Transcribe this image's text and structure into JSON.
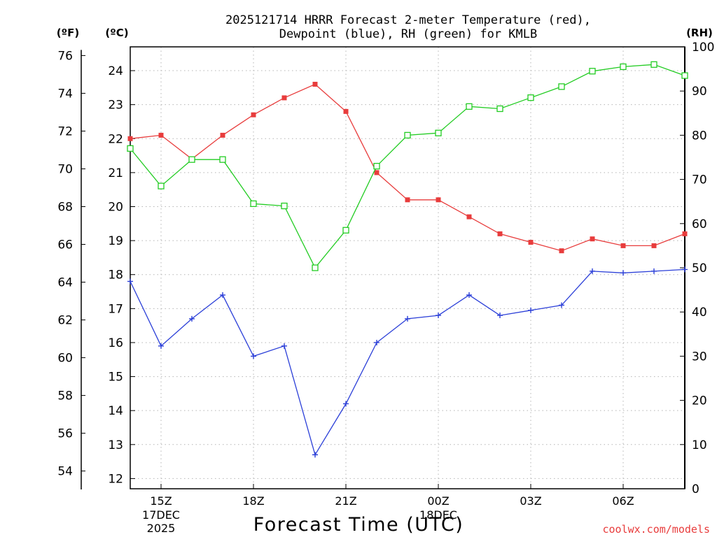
{
  "chart_data": {
    "type": "line",
    "title_line1": "2025121714 HRRR Forecast 2-meter Temperature (red),",
    "title_line2": "Dewpoint (blue), RH (green) for KMLB",
    "axis_units": {
      "fahrenheit": "(ºF)",
      "celsius": "(ºC)",
      "rh": "(RH)"
    },
    "xlabel": "Forecast Time (UTC)",
    "credit": "coolwx.com/models",
    "x_ticks": [
      {
        "hour": 1,
        "label": "15Z",
        "sub1": "17DEC",
        "sub2": "2025"
      },
      {
        "hour": 4,
        "label": "18Z",
        "sub1": "",
        "sub2": ""
      },
      {
        "hour": 7,
        "label": "21Z",
        "sub1": "",
        "sub2": ""
      },
      {
        "hour": 10,
        "label": "00Z",
        "sub1": "18DEC",
        "sub2": ""
      },
      {
        "hour": 13,
        "label": "03Z",
        "sub1": "",
        "sub2": ""
      },
      {
        "hour": 16,
        "label": "06Z",
        "sub1": "",
        "sub2": ""
      }
    ],
    "x_range": [
      0,
      18
    ],
    "celsius_range": [
      11.7,
      24.7
    ],
    "celsius_ticks": [
      12,
      13,
      14,
      15,
      16,
      17,
      18,
      19,
      20,
      21,
      22,
      23,
      24
    ],
    "fahrenheit_ticks": [
      54,
      56,
      58,
      60,
      62,
      64,
      66,
      68,
      70,
      72,
      74,
      76
    ],
    "rh_range": [
      0,
      100
    ],
    "rh_ticks": [
      0,
      10,
      20,
      30,
      40,
      50,
      60,
      70,
      80,
      90,
      100
    ],
    "hours": [
      0,
      1,
      2,
      3,
      4,
      5,
      6,
      7,
      8,
      9,
      10,
      11,
      12,
      13,
      14,
      15,
      16,
      17,
      18
    ],
    "series": [
      {
        "name": "Temperature",
        "unit": "C",
        "color": "#e83c3c",
        "marker": "filled-square",
        "values": [
          22.0,
          22.1,
          21.4,
          22.1,
          22.7,
          23.2,
          23.6,
          22.8,
          21.0,
          20.2,
          20.2,
          19.7,
          19.2,
          18.95,
          18.7,
          19.05,
          18.85,
          18.85,
          19.2
        ]
      },
      {
        "name": "Dewpoint",
        "unit": "C",
        "color": "#2b3fd8",
        "marker": "plus",
        "values": [
          17.8,
          15.9,
          16.7,
          17.4,
          15.6,
          15.9,
          12.7,
          14.2,
          16.0,
          16.7,
          16.8,
          17.4,
          16.8,
          16.95,
          17.1,
          18.1,
          18.05,
          18.1,
          18.15
        ]
      },
      {
        "name": "RH",
        "unit": "%",
        "color": "#22cc22",
        "marker": "open-square",
        "values": [
          77,
          68.5,
          74.5,
          74.5,
          64.5,
          64,
          50,
          58.5,
          73,
          80,
          80.5,
          86.5,
          86,
          88.5,
          91,
          94.5,
          95.5,
          96,
          93.5
        ]
      }
    ]
  }
}
